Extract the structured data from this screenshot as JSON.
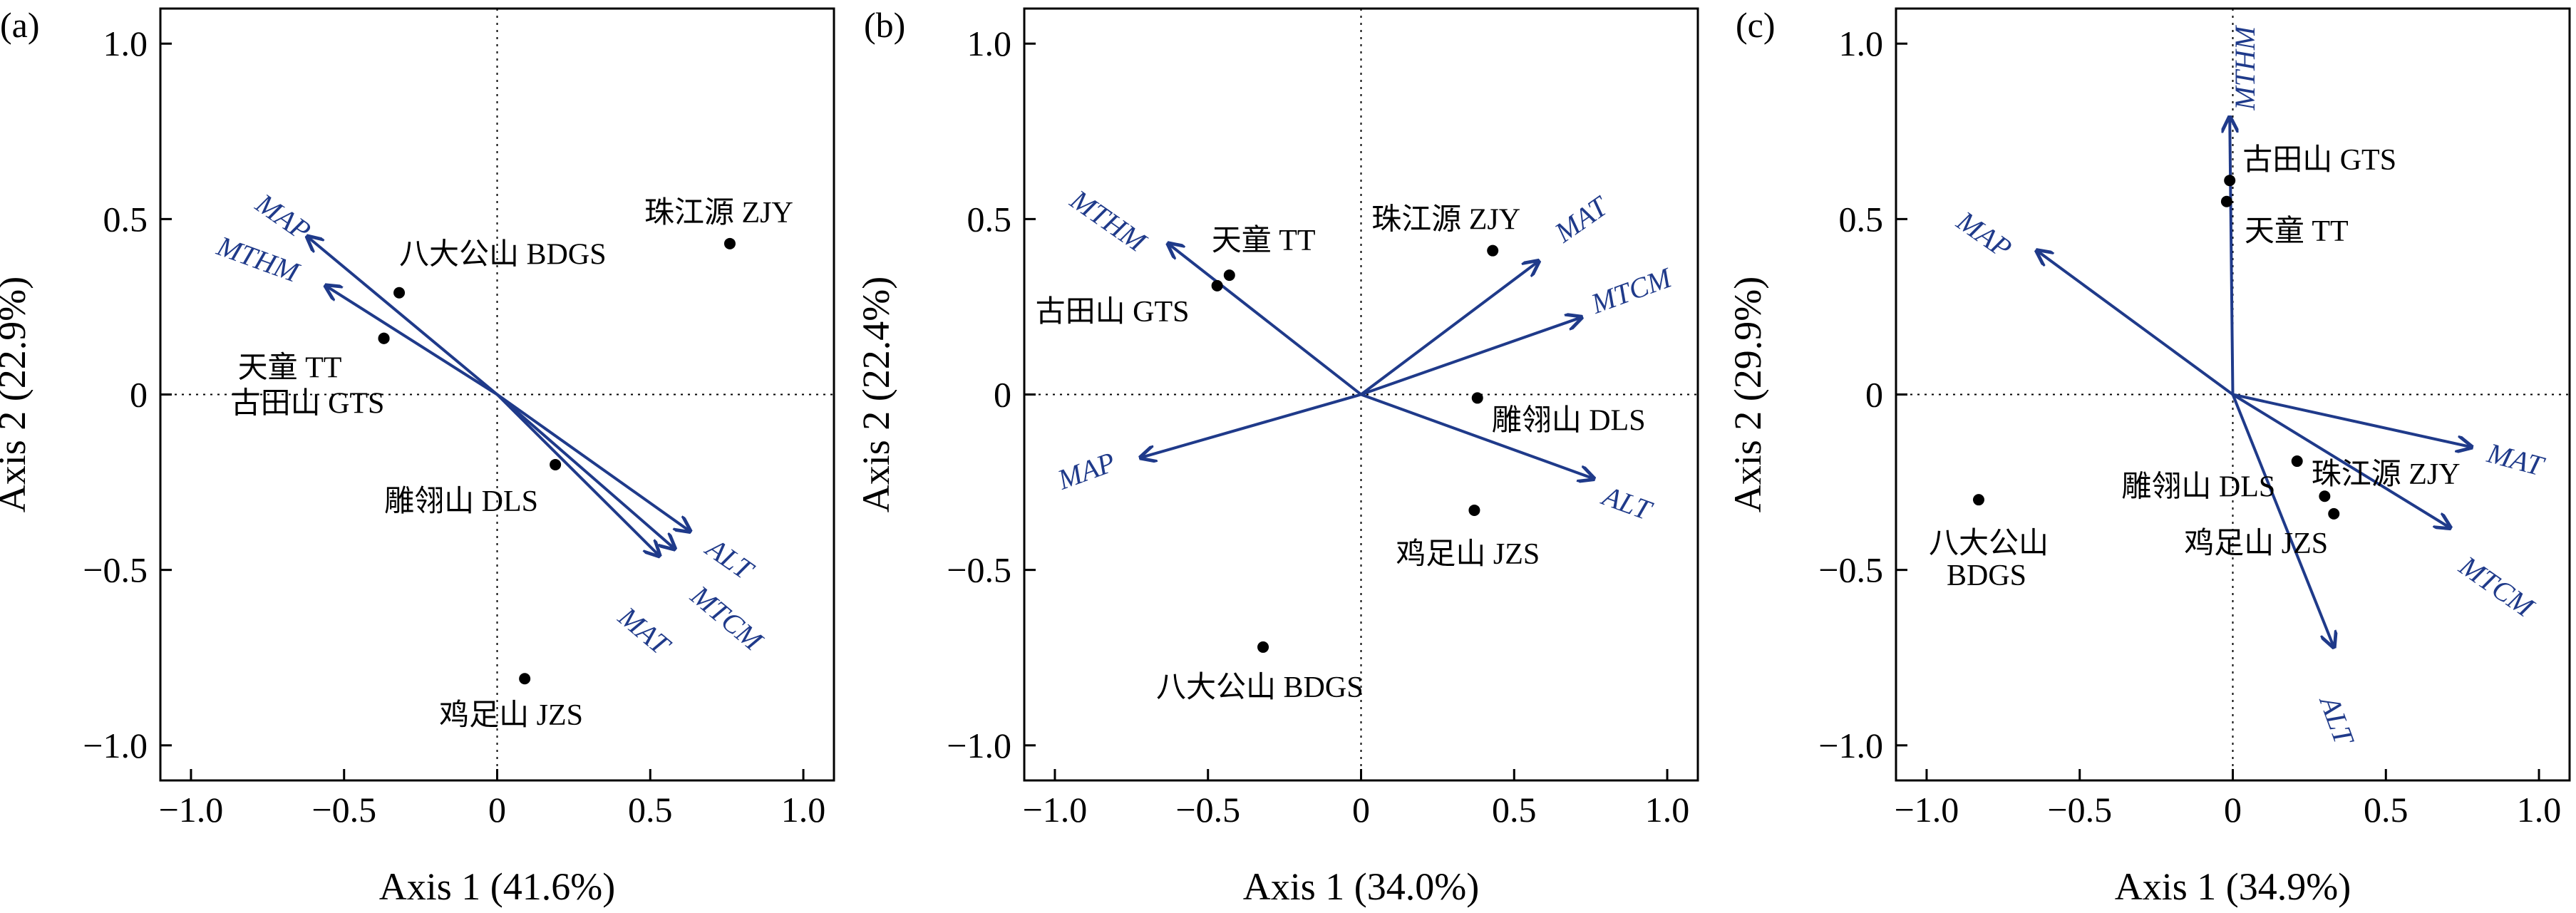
{
  "chart_data": [
    {
      "type": "scatter",
      "panel": "(a)",
      "xlabel": "Axis 1 (41.6%)",
      "ylabel": "Axis 2 (22.9%)",
      "xlim": [
        -1.1,
        1.1
      ],
      "ylim": [
        -1.1,
        1.1
      ],
      "xticks": [
        -1.0,
        -0.5,
        0,
        0.5,
        1.0
      ],
      "yticks": [
        -1.0,
        -0.5,
        0,
        0.5,
        1.0
      ],
      "xtick_labels": [
        "−1.0",
        "−0.5",
        "0",
        "0.5",
        "1.0"
      ],
      "ytick_labels": [
        "−1.0",
        "−0.5",
        "0",
        "0.5",
        "1.0"
      ],
      "points": [
        {
          "label": "八大公山 BDGS",
          "x": -0.32,
          "y": 0.29
        },
        {
          "label": "天童 TT",
          "x": -0.37,
          "y": 0.16
        },
        {
          "label": "古田山 GTS",
          "x": -0.37,
          "y": 0.16
        },
        {
          "label": "珠江源 ZJY",
          "x": 0.76,
          "y": 0.43
        },
        {
          "label": "雕翎山 DLS",
          "x": 0.19,
          "y": -0.2
        },
        {
          "label": "鸡足山 JZS",
          "x": 0.09,
          "y": -0.81
        }
      ],
      "vectors": [
        {
          "name": "MAP",
          "x": -0.62,
          "y": 0.45
        },
        {
          "name": "MTHM",
          "x": -0.56,
          "y": 0.31
        },
        {
          "name": "ALT",
          "x": 0.63,
          "y": -0.39
        },
        {
          "name": "MTCM",
          "x": 0.58,
          "y": -0.44
        },
        {
          "name": "MAT",
          "x": 0.53,
          "y": -0.46
        }
      ]
    },
    {
      "type": "scatter",
      "panel": "(b)",
      "xlabel": "Axis 1 (34.0%)",
      "ylabel": "Axis 2 (22.4%)",
      "xlim": [
        -1.1,
        1.1
      ],
      "ylim": [
        -1.1,
        1.1
      ],
      "xticks": [
        -1.0,
        -0.5,
        0,
        0.5,
        1.0
      ],
      "yticks": [
        -1.0,
        -0.5,
        0,
        0.5,
        1.0
      ],
      "xtick_labels": [
        "−1.0",
        "−0.5",
        "0",
        "0.5",
        "1.0"
      ],
      "ytick_labels": [
        "−1.0",
        "−0.5",
        "0",
        "0.5",
        "1.0"
      ],
      "points": [
        {
          "label": "天童 TT",
          "x": -0.43,
          "y": 0.34
        },
        {
          "label": "古田山 GTS",
          "x": -0.47,
          "y": 0.31
        },
        {
          "label": "珠江源 ZJY",
          "x": 0.43,
          "y": 0.41
        },
        {
          "label": "雕翎山 DLS",
          "x": 0.38,
          "y": -0.01
        },
        {
          "label": "鸡足山 JZS",
          "x": 0.37,
          "y": -0.33
        },
        {
          "label": "八大公山 BDGS",
          "x": -0.32,
          "y": -0.72
        }
      ],
      "vectors": [
        {
          "name": "MTHM",
          "x": -0.63,
          "y": 0.43
        },
        {
          "name": "MAP",
          "x": -0.72,
          "y": -0.18
        },
        {
          "name": "MAT",
          "x": 0.58,
          "y": 0.38
        },
        {
          "name": "MTCM",
          "x": 0.72,
          "y": 0.22
        },
        {
          "name": "ALT",
          "x": 0.76,
          "y": -0.24
        }
      ]
    },
    {
      "type": "scatter",
      "panel": "(c)",
      "xlabel": "Axis 1 (34.9%)",
      "ylabel": "Axis 2 (29.9%)",
      "xlim": [
        -1.1,
        1.1
      ],
      "ylim": [
        -1.1,
        1.1
      ],
      "xticks": [
        -1.0,
        -0.5,
        0,
        0.5,
        1.0
      ],
      "yticks": [
        -1.0,
        -0.5,
        0,
        0.5,
        1.0
      ],
      "xtick_labels": [
        "−1.0",
        "−0.5",
        "0",
        "0.5",
        "1.0"
      ],
      "ytick_labels": [
        "−1.0",
        "−0.5",
        "0",
        "0.5",
        "1.0"
      ],
      "points": [
        {
          "label": "古田山 GTS",
          "x": -0.01,
          "y": 0.61
        },
        {
          "label": "天童 TT",
          "x": -0.02,
          "y": 0.55
        },
        {
          "label": "珠江源 ZJY",
          "x": 0.21,
          "y": -0.19
        },
        {
          "label": "雕翎山 DLS",
          "x": 0.3,
          "y": -0.29
        },
        {
          "label": "鸡足山 JZS",
          "x": 0.33,
          "y": -0.34
        },
        {
          "label": "八大公山 BDGS",
          "x": -0.83,
          "y": -0.3
        }
      ],
      "vectors": [
        {
          "name": "MTHM",
          "x": -0.01,
          "y": 0.79
        },
        {
          "name": "MAP",
          "x": -0.64,
          "y": 0.41
        },
        {
          "name": "MAT",
          "x": 0.78,
          "y": -0.15
        },
        {
          "name": "MTCM",
          "x": 0.71,
          "y": -0.38
        },
        {
          "name": "ALT",
          "x": 0.33,
          "y": -0.72
        }
      ]
    }
  ]
}
